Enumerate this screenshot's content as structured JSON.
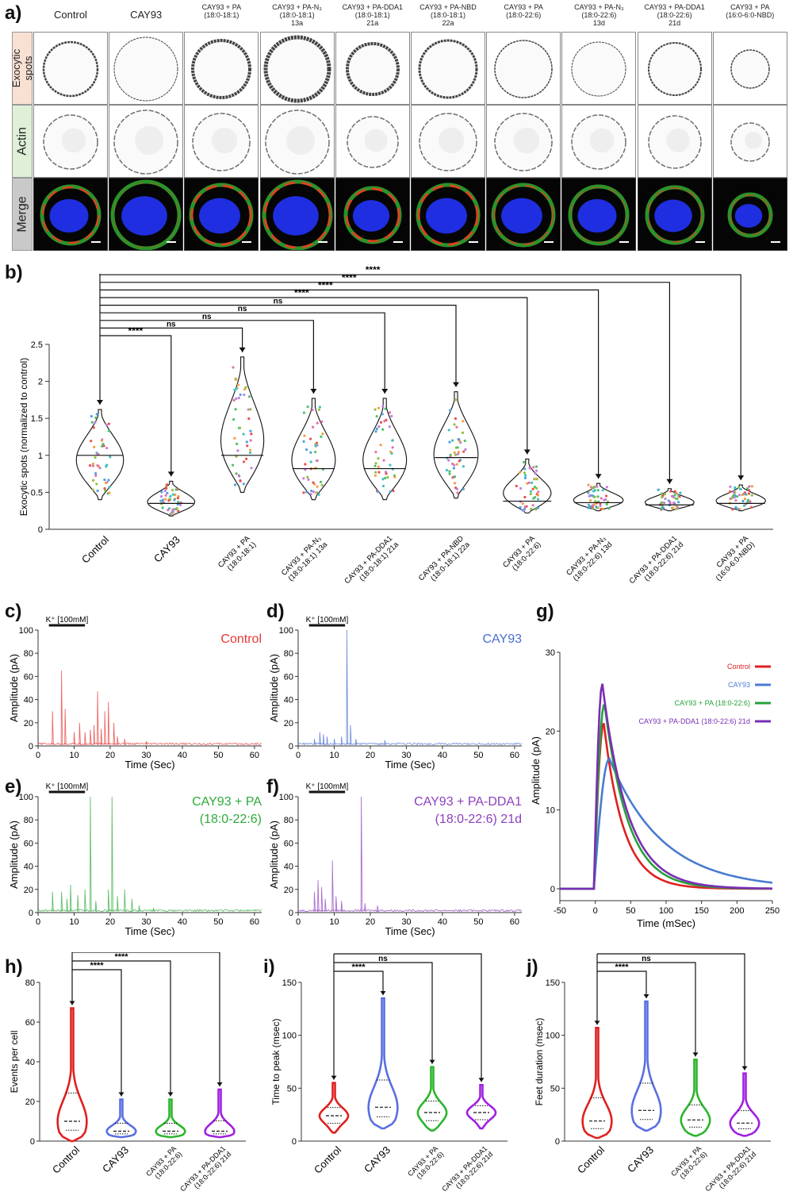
{
  "panel_letters": {
    "a": "a)",
    "b": "b)",
    "c": "c)",
    "d": "d)",
    "e": "e)",
    "f": "f)",
    "g": "g)",
    "h": "h)",
    "i": "i)",
    "j": "j)"
  },
  "panel_a": {
    "row_labels": [
      "Exocytic spots",
      "Actin",
      "Merge"
    ],
    "column_headers": [
      [
        "Control"
      ],
      [
        "CAY93"
      ],
      [
        "CAY93 + PA",
        "(18:0-18:1)"
      ],
      [
        "CAY93 + PA-N₃",
        "(18:0-18:1)",
        "13a"
      ],
      [
        "CAY93 + PA-DDA1",
        "(18:0-18:1)",
        "21a"
      ],
      [
        "CAY93 + PA-NBD",
        "(18:0-18:1)",
        "22a"
      ],
      [
        "CAY93 + PA",
        "(18:0-22:6)"
      ],
      [
        "CAY93 + PA-N₃",
        "(18:0-22:6)",
        "13d"
      ],
      [
        "CAY93 + PA-DDA1",
        "(18:0-22:6)",
        "21d"
      ],
      [
        "CAY93 + PA",
        "(16:0-6:0-NBD)"
      ]
    ]
  },
  "chart_data": [
    {
      "id": "b",
      "type": "violin",
      "ylabel": "Exocytic spots (normalized to control)",
      "ylim": [
        0,
        2.5
      ],
      "yticks": [
        "0",
        "0.5",
        "1",
        "1.5",
        "2",
        "2.5"
      ],
      "categories": [
        "Control",
        "CAY93",
        "CAY93 + PA (18:0-18:1)",
        "CAY93 + PA-N₃ (18:0-18:1) 13a",
        "CAY93 + PA-DDA1 (18:0-18:1) 21a",
        "CAY93 + PA-NBD (18:0-18:1) 22a",
        "CAY93 + PA (18:0-22:6)",
        "CAY93 + PA-N₃ (18:0-22:6) 13d",
        "CAY93 + PA-DDA1 (18:0-22:6) 21d",
        "CAY93 + PA (16:0-6:0-NBD)"
      ],
      "category_lines": [
        [
          "Control"
        ],
        [
          "CAY93"
        ],
        [
          "CAY93 + PA",
          "(18:0-18:1)"
        ],
        [
          "CAY93 + PA-N₃",
          "(18:0-18:1) 13a"
        ],
        [
          "CAY93 + PA-DDA1",
          "(18:0-18:1) 21a"
        ],
        [
          "CAY93 + PA-NBD",
          "(18:0-18:1) 22a"
        ],
        [
          "CAY93 + PA",
          "(18:0-22:6)"
        ],
        [
          "CAY93 + PA-N₃",
          "(18:0-22:6) 13d"
        ],
        [
          "CAY93 + PA-DDA1",
          "(18:0-22:6) 21d"
        ],
        [
          "CAY93 + PA",
          "(16:0-6:0-NBD)"
        ]
      ],
      "min": [
        0.4,
        0.18,
        0.5,
        0.4,
        0.4,
        0.42,
        0.22,
        0.25,
        0.25,
        0.25
      ],
      "max": [
        1.62,
        0.65,
        2.33,
        1.77,
        1.77,
        1.86,
        0.95,
        0.62,
        0.55,
        0.6
      ],
      "median": [
        1.0,
        0.35,
        1.0,
        0.82,
        0.82,
        0.97,
        0.38,
        0.36,
        0.33,
        0.35
      ],
      "comparisons": [
        {
          "to": "CAY93",
          "label": "****"
        },
        {
          "to": "CAY93 + PA (18:0-18:1)",
          "label": "ns"
        },
        {
          "to": "CAY93 + PA-N₃ (18:0-18:1) 13a",
          "label": "ns"
        },
        {
          "to": "CAY93 + PA-DDA1 (18:0-18:1) 21a",
          "label": "ns"
        },
        {
          "to": "CAY93 + PA-NBD (18:0-18:1) 22a",
          "label": "ns"
        },
        {
          "to": "CAY93 + PA (18:0-22:6)",
          "label": "****"
        },
        {
          "to": "CAY93 + PA-N₃ (18:0-22:6) 13d",
          "label": "****"
        },
        {
          "to": "CAY93 + PA-DDA1 (18:0-22:6) 21d",
          "label": "****"
        },
        {
          "to": "CAY93 + PA (16:0-6:0-NBD)",
          "label": "****"
        }
      ]
    },
    {
      "id": "c",
      "type": "line",
      "title": "Control",
      "color": "#e53935",
      "stimulus_label": "K⁺ [100mM]",
      "stimulus_x": [
        3,
        13
      ],
      "xlabel": "Time (Sec)",
      "ylabel": "Amplitude (pA)",
      "xlim": [
        0,
        62
      ],
      "ylim": [
        0,
        100
      ],
      "xticks": [
        "0",
        "10",
        "20",
        "30",
        "40",
        "50",
        "60"
      ],
      "yticks": [
        "0",
        "20",
        "40",
        "60",
        "80",
        "100"
      ],
      "spikes": [
        [
          4,
          30
        ],
        [
          6.5,
          65
        ],
        [
          7.5,
          32
        ],
        [
          10,
          12
        ],
        [
          11.5,
          20
        ],
        [
          13,
          12
        ],
        [
          14.5,
          14
        ],
        [
          15.5,
          18
        ],
        [
          16.5,
          47
        ],
        [
          17.5,
          15
        ],
        [
          18.5,
          30
        ],
        [
          19.5,
          38
        ],
        [
          21,
          20
        ],
        [
          22,
          8
        ],
        [
          24,
          6
        ],
        [
          30,
          4
        ]
      ]
    },
    {
      "id": "d",
      "type": "line",
      "title": "CAY93",
      "color": "#4a6fd1",
      "stimulus_label": "K⁺ [100mM]",
      "stimulus_x": [
        3,
        13
      ],
      "xlabel": "Time (Sec)",
      "ylabel": "Amplitude (pA)",
      "xlim": [
        0,
        62
      ],
      "ylim": [
        0,
        100
      ],
      "xticks": [
        "0",
        "10",
        "20",
        "30",
        "40",
        "50",
        "60"
      ],
      "yticks": [
        "0",
        "20",
        "40",
        "60",
        "80",
        "100"
      ],
      "spikes": [
        [
          4.5,
          6
        ],
        [
          6,
          12
        ],
        [
          7,
          10
        ],
        [
          8,
          8
        ],
        [
          10,
          6
        ],
        [
          12,
          8
        ],
        [
          13.5,
          100
        ],
        [
          14.5,
          18
        ],
        [
          16,
          6
        ],
        [
          24,
          5
        ]
      ]
    },
    {
      "id": "e",
      "type": "line",
      "title": "CAY93 + PA (18:0-22:6)",
      "title_lines": [
        "CAY93 + PA",
        "(18:0-22:6)"
      ],
      "color": "#2eaa3a",
      "stimulus_label": "K⁺ [100mM]",
      "stimulus_x": [
        3,
        13
      ],
      "xlabel": "Time (Sec)",
      "ylabel": "Amplitude (pA)",
      "xlim": [
        0,
        62
      ],
      "ylim": [
        0,
        100
      ],
      "xticks": [
        "0",
        "10",
        "20",
        "30",
        "40",
        "50",
        "60"
      ],
      "yticks": [
        "0",
        "20",
        "40",
        "60",
        "80",
        "100"
      ],
      "spikes": [
        [
          4,
          18
        ],
        [
          6.5,
          18
        ],
        [
          8,
          12
        ],
        [
          9,
          24
        ],
        [
          11,
          15
        ],
        [
          13,
          20
        ],
        [
          14.5,
          100
        ],
        [
          16,
          10
        ],
        [
          19.5,
          20
        ],
        [
          20.5,
          100
        ],
        [
          22,
          14
        ],
        [
          24,
          20
        ],
        [
          26,
          12
        ],
        [
          28,
          6
        ],
        [
          32,
          4
        ]
      ]
    },
    {
      "id": "f",
      "type": "line",
      "title": "CAY93 + PA-DDA1 (18:0-22:6) 21d",
      "title_lines": [
        "CAY93 + PA-DDA1",
        "(18:0-22:6) 21d"
      ],
      "color": "#8e3fbf",
      "stimulus_label": "K⁺ [100mM]",
      "stimulus_x": [
        3,
        13
      ],
      "xlabel": "Time (Sec)",
      "ylabel": "Amplitude (pA)",
      "xlim": [
        0,
        62
      ],
      "ylim": [
        0,
        100
      ],
      "xticks": [
        "0",
        "10",
        "20",
        "30",
        "40",
        "50",
        "60"
      ],
      "yticks": [
        "0",
        "20",
        "40",
        "60",
        "80",
        "100"
      ],
      "spikes": [
        [
          4.5,
          18
        ],
        [
          5.5,
          28
        ],
        [
          6.5,
          22
        ],
        [
          7.5,
          12
        ],
        [
          9.5,
          45
        ],
        [
          10.5,
          14
        ],
        [
          12,
          10
        ],
        [
          17.5,
          100
        ],
        [
          18.5,
          8
        ],
        [
          22,
          6
        ]
      ]
    },
    {
      "id": "g",
      "type": "line",
      "xlabel": "Time (mSec)",
      "ylabel": "Amplitude (pA)",
      "xlim": [
        -50,
        250
      ],
      "ylim": [
        0,
        30
      ],
      "xticks": [
        "-50",
        "0",
        "50",
        "100",
        "150",
        "200",
        "250"
      ],
      "yticks": [
        "0",
        "10",
        "20",
        "30"
      ],
      "series": [
        {
          "name": "Control",
          "color": "#e02020",
          "peak": 21,
          "t_peak": 12,
          "decay_ms": 28
        },
        {
          "name": "CAY93",
          "color": "#4a7bd0",
          "peak": 16.5,
          "t_peak": 20,
          "decay_ms": 75
        },
        {
          "name": "CAY93 + PA (18:0-22:6)",
          "color": "#25a23a",
          "peak": 23.5,
          "t_peak": 13,
          "decay_ms": 33
        },
        {
          "name": "CAY93 + PA-DDA1 (18:0-22:6) 21d",
          "color": "#7a2db5",
          "peak": 26,
          "t_peak": 10,
          "decay_ms": 36
        }
      ]
    },
    {
      "id": "h",
      "type": "violin",
      "ylabel": "Events per cell",
      "ylim": [
        0,
        80
      ],
      "yticks": [
        "0",
        "20",
        "40",
        "60",
        "80"
      ],
      "categories": [
        "Control",
        "CAY93",
        "CAY93 + PA (18:0-22:6)",
        "CAY93 + PA-DDA1 (18:0-22:6) 21d"
      ],
      "category_lines": [
        [
          "Control"
        ],
        [
          "CAY93"
        ],
        [
          "CAY93 + PA",
          "(18:0-22:6)"
        ],
        [
          "CAY93 + PA-DDA1",
          "(18:0-22:6) 21d"
        ]
      ],
      "colors": [
        "#e02020",
        "#5a6fe0",
        "#2cb52c",
        "#a020e0"
      ],
      "min": [
        0,
        2,
        2,
        2
      ],
      "max": [
        67,
        21,
        21,
        26
      ],
      "median": [
        10,
        5,
        5,
        5
      ],
      "comparisons": [
        {
          "to": "CAY93",
          "label": "****"
        },
        {
          "to": "CAY93 + PA (18:0-22:6)",
          "label": "****"
        },
        {
          "to": "CAY93 + PA-DDA1 (18:0-22:6) 21d",
          "label": "****"
        }
      ]
    },
    {
      "id": "i",
      "type": "violin",
      "ylabel": "Time to peak (msec)",
      "ylim": [
        0,
        150
      ],
      "yticks": [
        "0",
        "50",
        "100",
        "150"
      ],
      "categories": [
        "Control",
        "CAY93",
        "CAY93 + PA (18:0-22:6)",
        "CAY93 + PA-DDA1 (18:0-22:6) 21d"
      ],
      "category_lines": [
        [
          "Control"
        ],
        [
          "CAY93"
        ],
        [
          "CAY93 + PA",
          "(18:0-22:6)"
        ],
        [
          "CAY93 + PA-DDA1",
          "(18:0-22:6) 21d"
        ]
      ],
      "colors": [
        "#e02020",
        "#5a6fe0",
        "#2cb52c",
        "#a020e0"
      ],
      "min": [
        8,
        12,
        10,
        12
      ],
      "max": [
        55,
        135,
        70,
        53
      ],
      "median": [
        24,
        32,
        27,
        27
      ],
      "comparisons": [
        {
          "to": "CAY93",
          "label": "****"
        },
        {
          "to": "CAY93 + PA (18:0-22:6)",
          "label": "ns"
        },
        {
          "to": "CAY93 + PA-DDA1 (18:0-22:6) 21d",
          "label": "ns"
        }
      ]
    },
    {
      "id": "j",
      "type": "violin",
      "ylabel": "Feet duration (msec)",
      "ylim": [
        0,
        150
      ],
      "yticks": [
        "0",
        "50",
        "100",
        "150"
      ],
      "categories": [
        "Control",
        "CAY93",
        "CAY93 + PA (18:0-22:6)",
        "CAY93 + PA-DDA1 (18:0-22:6) 21d"
      ],
      "category_lines": [
        [
          "Control"
        ],
        [
          "CAY93"
        ],
        [
          "CAY93 + PA",
          "(18:0-22:6)"
        ],
        [
          "CAY93 + PA-DDA1",
          "(18:0-22:6) 21d"
        ]
      ],
      "colors": [
        "#e02020",
        "#5a6fe0",
        "#2cb52c",
        "#a020e0"
      ],
      "min": [
        3,
        10,
        5,
        5
      ],
      "max": [
        107,
        132,
        77,
        64
      ],
      "median": [
        19,
        29,
        20,
        17
      ],
      "comparisons": [
        {
          "to": "CAY93",
          "label": "****"
        },
        {
          "to": "CAY93 + PA (18:0-22:6)",
          "label": "ns"
        },
        {
          "to": "CAY93 + PA-DDA1 (18:0-22:6) 21d",
          "label": "ns"
        }
      ]
    }
  ]
}
